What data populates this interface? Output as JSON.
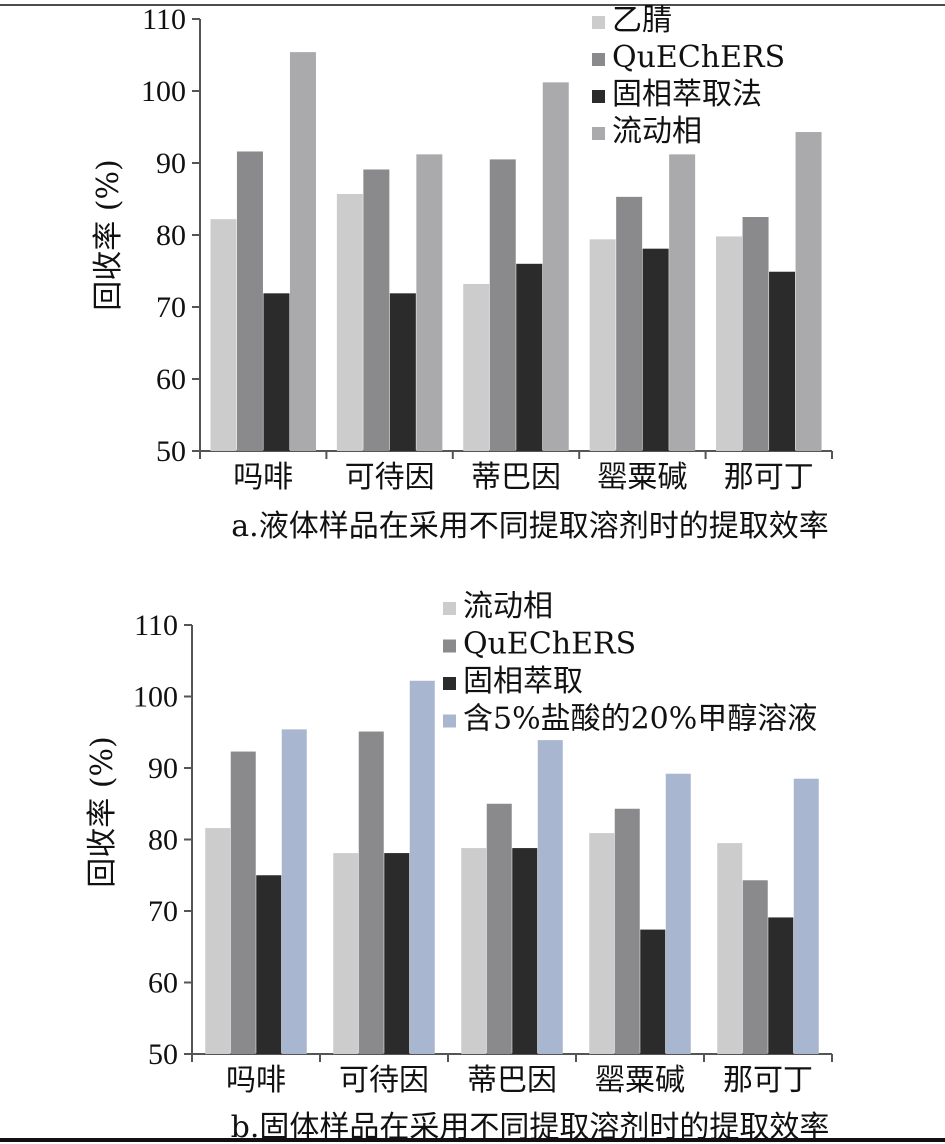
{
  "chart_data": [
    {
      "type": "bar",
      "caption": "a.液体样品在采用不同提取溶剂时的提取效率",
      "ylabel": "回收率 (%)",
      "ylim": [
        50,
        110
      ],
      "yticks": [
        50,
        60,
        70,
        80,
        90,
        100,
        110
      ],
      "categories": [
        "吗啡",
        "可待因",
        "蒂巴因",
        "罂粟碱",
        "那可丁"
      ],
      "legend_position": "top-center",
      "series": [
        {
          "name": "乙腈",
          "color": "#cccccc",
          "values": [
            82.2,
            85.7,
            73.2,
            79.4,
            79.8
          ]
        },
        {
          "name": "QuEChERS",
          "color": "#8a8a8d",
          "values": [
            91.6,
            89.1,
            90.5,
            85.3,
            82.5
          ]
        },
        {
          "name": "固相萃取法",
          "color": "#2b2b2b",
          "values": [
            71.9,
            71.9,
            76.0,
            78.1,
            74.9
          ]
        },
        {
          "name": "流动相",
          "color": "#aaaaad",
          "values": [
            105.4,
            91.2,
            101.2,
            91.2,
            94.3
          ]
        }
      ]
    },
    {
      "type": "bar",
      "caption": "b.固体样品在采用不同提取溶剂时的提取效率",
      "ylabel": "回收率 (%)",
      "ylim": [
        50,
        110
      ],
      "yticks": [
        50,
        60,
        70,
        80,
        90,
        100,
        110
      ],
      "categories": [
        "吗啡",
        "可待因",
        "蒂巴因",
        "罂粟碱",
        "那可丁"
      ],
      "legend_position": "top-center",
      "series": [
        {
          "name": "流动相",
          "color": "#cccccc",
          "values": [
            81.6,
            78.1,
            78.8,
            80.9,
            79.5
          ]
        },
        {
          "name": "QuEChERS",
          "color": "#8a8a8d",
          "values": [
            92.3,
            95.1,
            85.0,
            84.3,
            74.3
          ]
        },
        {
          "name": "固相萃取",
          "color": "#2b2b2b",
          "values": [
            75.0,
            78.1,
            78.8,
            67.4,
            69.1
          ]
        },
        {
          "name": "含5%盐酸的20%甲醇溶液",
          "color": "#a8b6d0",
          "values": [
            95.4,
            102.2,
            93.9,
            89.2,
            88.5
          ]
        }
      ]
    }
  ]
}
